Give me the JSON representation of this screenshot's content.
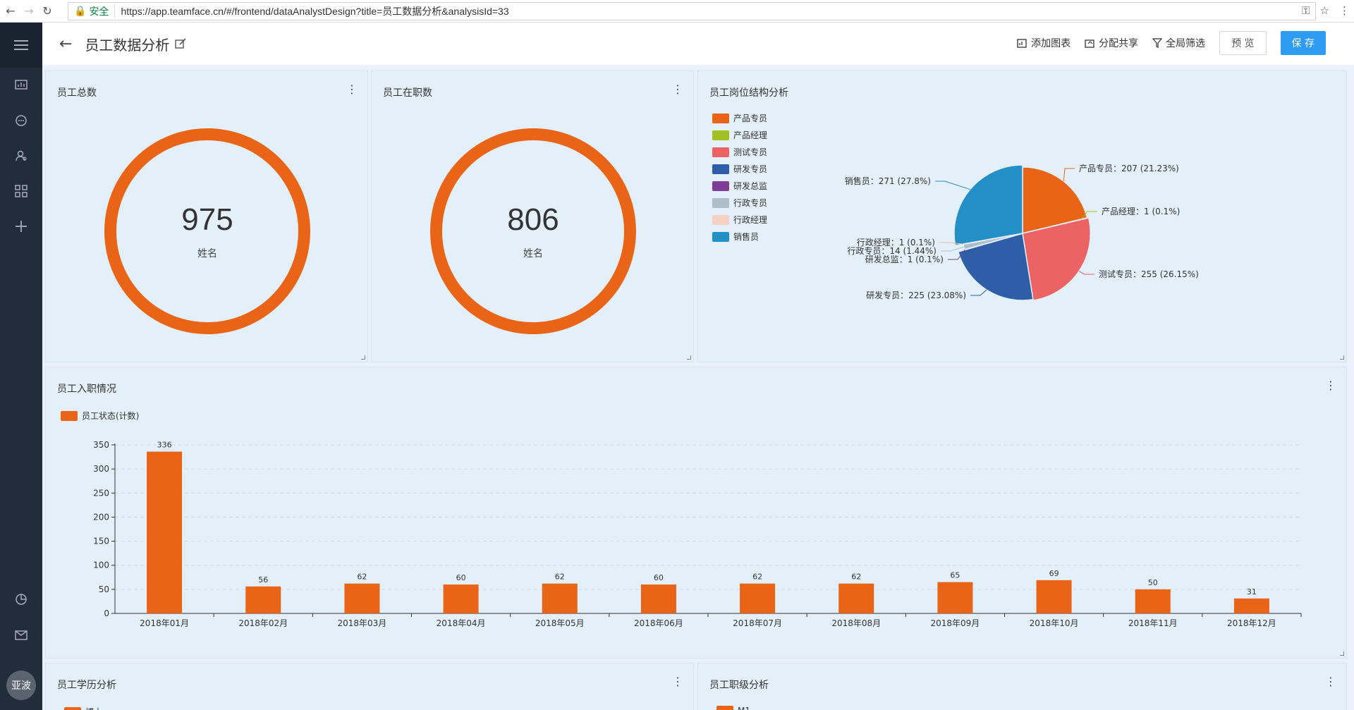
{
  "browser": {
    "secure_label": "安全",
    "url": "https://app.teamface.cn/#/frontend/dataAnalystDesign?title=员工数据分析&analysisId=33"
  },
  "sidebar": {
    "avatar_label": "亚波"
  },
  "header": {
    "title": "员工数据分析",
    "add_chart": "添加图表",
    "share": "分配共享",
    "filter": "全局筛选",
    "preview": "预 览",
    "save": "保 存"
  },
  "panels": {
    "total": {
      "title": "员工总数",
      "value": "975",
      "label": "姓名"
    },
    "active": {
      "title": "员工在职数",
      "value": "806",
      "label": "姓名"
    },
    "positions": {
      "title": "员工岗位结构分析"
    },
    "onboarding": {
      "title": "员工入职情况",
      "legend": "员工状态(计数)"
    },
    "education": {
      "title": "员工学历分析"
    },
    "level": {
      "title": "员工职级分析"
    }
  },
  "chart_data": [
    {
      "type": "pie",
      "title": "员工岗位结构分析",
      "labels": [
        "产品专员",
        "产品经理",
        "测试专员",
        "研发专员",
        "研发总监",
        "行政专员",
        "行政经理",
        "销售员"
      ],
      "values": [
        207,
        1,
        255,
        225,
        1,
        14,
        1,
        271
      ],
      "percentages": [
        "21.23%",
        "0.1%",
        "26.15%",
        "23.08%",
        "0.1%",
        "1.44%",
        "0.1%",
        "27.8%"
      ],
      "colors": [
        "#ea6418",
        "#a2c022",
        "#ec6363",
        "#2e5ea8",
        "#7e3d96",
        "#aebfcb",
        "#f6d2c5",
        "#228fc7"
      ],
      "data_labels": [
        "产品专员：207 (21.23%)",
        "产品经理：1 (0.1%)",
        "测试专员：255 (26.15%)",
        "研发专员：225 (23.08%)",
        "研发总监：1 (0.1%)",
        "行政专员：14 (1.44%)",
        "行政经理：1 (0.1%)",
        "销售员：271 (27.8%)"
      ],
      "legend_position": "left"
    },
    {
      "type": "bar",
      "title": "员工入职情况",
      "series": [
        {
          "name": "员工状态(计数)",
          "values": [
            336,
            56,
            62,
            60,
            62,
            60,
            62,
            62,
            65,
            69,
            50,
            31
          ]
        }
      ],
      "categories": [
        "2018年01月",
        "2018年02月",
        "2018年03月",
        "2018年04月",
        "2018年05月",
        "2018年06月",
        "2018年07月",
        "2018年08月",
        "2018年09月",
        "2018年10月",
        "2018年11月",
        "2018年12月"
      ],
      "ylim": [
        0,
        350
      ],
      "yticks": [
        0,
        50,
        100,
        150,
        200,
        250,
        300,
        350
      ],
      "grid": true,
      "color": "#ea6418",
      "legend_position": "top-left"
    }
  ],
  "partial_legends": {
    "education_first": "博士",
    "level_first": "M1"
  }
}
